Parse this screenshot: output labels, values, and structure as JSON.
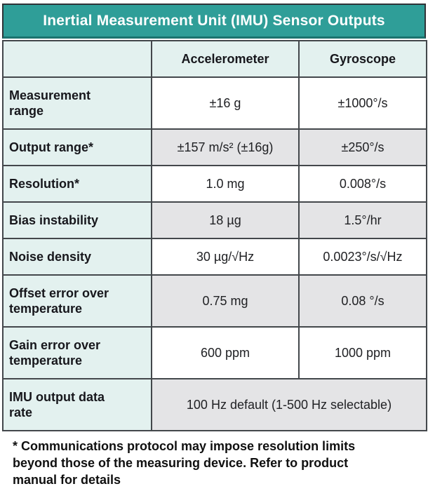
{
  "chart_data": {
    "type": "table",
    "title": "Inertial Measurement Unit (IMU) Sensor Outputs",
    "columns": [
      "",
      "Accelerometer",
      "Gyroscope"
    ],
    "rows": [
      [
        "Measurement range",
        "±16 g",
        "±1000°/s"
      ],
      [
        "Output range*",
        "±157 m/s² (±16g)",
        "±250°/s"
      ],
      [
        "Resolution*",
        "1.0 mg",
        "0.008°/s"
      ],
      [
        "Bias instability",
        "18 µg",
        "1.5°/hr"
      ],
      [
        "Noise density",
        "30 µg/√Hz",
        "0.0023°/s/√Hz"
      ],
      [
        "Offset error over temperature",
        "0.75 mg",
        "0.08 °/s"
      ],
      [
        "Gain error over temperature",
        "600 ppm",
        "1000 ppm"
      ],
      [
        "IMU output data rate",
        "100 Hz default (1-500 Hz selectable)"
      ]
    ],
    "layout": {
      "legend_position": "none",
      "grid": "full-borders",
      "last_row_value_spans_both_columns": true,
      "alternating_value_row_shading": "white/gray"
    }
  },
  "footnote": {
    "lines": [
      "* Communications protocol may impose resolution limits",
      "beyond those of the measuring device. Refer to product",
      "manual for details"
    ]
  },
  "colors": {
    "title_bg": "#2F9E98",
    "title_underline": "#1B736E",
    "title_text": "#FFFFFF",
    "mint_bg": "#E3F1EF",
    "gray_row_bg": "#E4E4E6",
    "white_row_bg": "#FFFFFF",
    "border": "#43474B",
    "text": "#1B1B20"
  }
}
